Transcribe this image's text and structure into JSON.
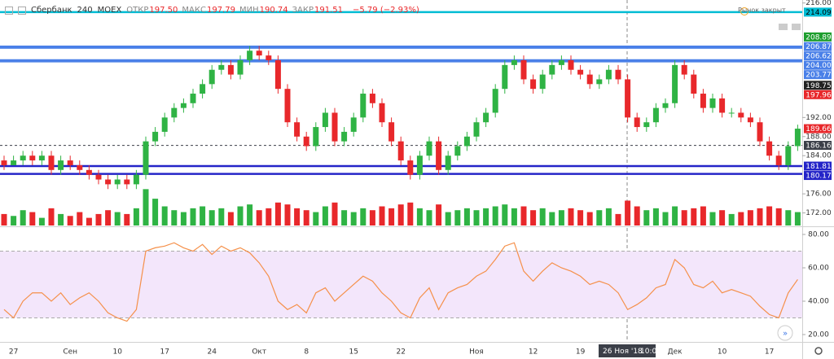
{
  "header": {
    "symbol": "Сбербанк",
    "interval": "240",
    "exchange": "MOEX",
    "ohlc": [
      {
        "label": "ОТКР",
        "value": "197.50"
      },
      {
        "label": "МАКС",
        "value": "197.79"
      },
      {
        "label": "МИН",
        "value": "190.74"
      },
      {
        "label": "ЗАКР",
        "value": "191.51"
      }
    ],
    "change": "−5.79 (−2.93%)",
    "market_status": "Рынок закрыт"
  },
  "crosshair": {
    "date": "26 Ноя '18",
    "time": "10:00"
  },
  "chart_data": [
    {
      "type": "candlestick",
      "up_color": "#2fb344",
      "down_color": "#e8282b",
      "open": [
        183,
        182,
        183,
        184,
        183,
        184,
        181,
        183,
        182,
        181,
        180,
        179,
        178,
        179,
        178,
        180,
        187,
        189,
        192,
        194,
        195,
        197,
        199,
        202,
        203,
        201,
        204,
        206,
        205,
        204,
        198,
        191,
        188,
        186,
        190,
        193,
        187,
        189,
        192,
        197,
        195,
        191,
        187,
        183,
        180,
        184,
        187,
        181,
        184,
        186,
        188,
        191,
        193,
        198,
        203,
        204,
        200,
        198,
        201,
        203,
        204,
        202,
        201,
        199,
        200,
        202,
        200,
        192,
        190,
        191,
        194,
        195,
        203,
        201,
        197,
        194,
        196,
        193,
        193,
        192,
        191,
        187,
        184,
        182,
        186
      ],
      "high": [
        184,
        184,
        185,
        185,
        185,
        185,
        184,
        184,
        183,
        182,
        181,
        180,
        180,
        180,
        181,
        188,
        190,
        193,
        195,
        196,
        198,
        200,
        203,
        204,
        204,
        205,
        207,
        207,
        206,
        205,
        199,
        192,
        189,
        191,
        194,
        194,
        190,
        193,
        198,
        198,
        196,
        192,
        188,
        184,
        185,
        188,
        188,
        185,
        187,
        189,
        192,
        194,
        199,
        204,
        205,
        205,
        201,
        202,
        204,
        205,
        205,
        203,
        202,
        201,
        203,
        203,
        201,
        193,
        192,
        195,
        196,
        204,
        204,
        202,
        198,
        197,
        197,
        194,
        194,
        193,
        192,
        188,
        185,
        187,
        190.5
      ],
      "low": [
        181,
        182,
        182,
        182,
        182,
        180,
        180,
        181,
        180,
        179,
        178,
        177,
        177,
        177,
        177,
        179,
        186,
        188,
        191,
        193,
        194,
        196,
        198,
        201,
        200,
        200,
        203,
        204,
        203,
        197,
        190,
        187,
        185,
        185,
        189,
        186,
        186,
        188,
        191,
        194,
        190,
        186,
        182,
        179,
        179,
        183,
        180,
        180,
        183,
        185,
        187,
        190,
        192,
        197,
        202,
        199,
        197,
        197,
        200,
        202,
        201,
        200,
        198,
        198,
        199,
        199,
        191,
        189,
        189,
        190,
        193,
        194,
        200,
        196,
        193,
        193,
        192,
        192,
        191,
        190,
        186,
        183,
        181,
        181,
        185
      ],
      "close": [
        182,
        183,
        184,
        183,
        184,
        181,
        183,
        182,
        181,
        180,
        179,
        178,
        179,
        178,
        180,
        187,
        189,
        192,
        194,
        195,
        197,
        199,
        202,
        203,
        201,
        204,
        206,
        205,
        204,
        198,
        191,
        188,
        186,
        190,
        193,
        187,
        189,
        192,
        197,
        195,
        191,
        187,
        183,
        180,
        184,
        187,
        181,
        184,
        186,
        188,
        191,
        193,
        198,
        203,
        204,
        200,
        198,
        201,
        203,
        204,
        202,
        201,
        199,
        200,
        202,
        200,
        192,
        190,
        191,
        194,
        195,
        203,
        201,
        197,
        194,
        196,
        193,
        193,
        192,
        191,
        187,
        184,
        182,
        186,
        189.66
      ],
      "volume": [
        30,
        25,
        40,
        35,
        20,
        45,
        30,
        25,
        35,
        20,
        30,
        40,
        35,
        30,
        45,
        95,
        70,
        50,
        40,
        35,
        45,
        50,
        40,
        45,
        35,
        50,
        55,
        40,
        45,
        60,
        55,
        45,
        40,
        35,
        50,
        60,
        40,
        35,
        45,
        40,
        50,
        45,
        55,
        60,
        45,
        40,
        55,
        35,
        40,
        45,
        40,
        45,
        50,
        55,
        45,
        50,
        40,
        45,
        35,
        40,
        45,
        40,
        35,
        40,
        45,
        30,
        65,
        50,
        40,
        45,
        35,
        50,
        40,
        45,
        50,
        35,
        40,
        30,
        35,
        40,
        45,
        50,
        45,
        40,
        35
      ],
      "vlim": [
        0,
        100
      ],
      "ylim": [
        171.24,
        216.63
      ],
      "yticks": [
        {
          "value": 216,
          "label": "216.00"
        },
        {
          "value": 192,
          "label": "192.00"
        },
        {
          "value": 188,
          "label": "188.00"
        },
        {
          "value": 184,
          "label": "184.00"
        },
        {
          "value": 176,
          "label": "176.00"
        },
        {
          "value": 172,
          "label": "172.00"
        }
      ],
      "xticks": [
        {
          "value": 1,
          "label": "27"
        },
        {
          "value": 7,
          "label": "Сен"
        },
        {
          "value": 12,
          "label": "10"
        },
        {
          "value": 17,
          "label": "17"
        },
        {
          "value": 22,
          "label": "24"
        },
        {
          "value": 27,
          "label": "Окт"
        },
        {
          "value": 32,
          "label": "8"
        },
        {
          "value": 37,
          "label": "15"
        },
        {
          "value": 42,
          "label": "22"
        },
        {
          "value": 50,
          "label": "Ноя"
        },
        {
          "value": 56,
          "label": "12"
        },
        {
          "value": 61,
          "label": "19"
        },
        {
          "value": 71,
          "label": "Дек"
        },
        {
          "value": 76,
          "label": "10"
        },
        {
          "value": 81,
          "label": "17"
        }
      ],
      "levels": [
        {
          "value": 214.09,
          "label": "214.09",
          "color": "#00bcd4",
          "text_color": "#000000",
          "line": true
        },
        {
          "value": 208.89,
          "label": "208.89",
          "color": "#1e9e2e",
          "line": false
        },
        {
          "value": 206.87,
          "label": "206.87",
          "color": "#4a80e8",
          "line": true
        },
        {
          "value": 206.62,
          "label": "206.62",
          "color": "#4a80e8",
          "line": true
        },
        {
          "value": 204.0,
          "label": "204.00",
          "color": "#4a80e8",
          "line": true
        },
        {
          "value": 203.77,
          "label": "203.77",
          "color": "#4a80e8",
          "line": true
        },
        {
          "value": 198.75,
          "label": "198.75",
          "color": "#222222",
          "line": false
        },
        {
          "value": 197.96,
          "label": "197.96",
          "color": "#e8282b",
          "line": false
        },
        {
          "value": 189.66,
          "label": "189.66",
          "color": "#e8282b",
          "line": false
        },
        {
          "value": 186.16,
          "label": "186.16",
          "color": "#3b3f48",
          "line": true,
          "dashed": true
        },
        {
          "value": 181.81,
          "label": "181.81",
          "color": "#2424c8",
          "line": true
        },
        {
          "value": 180.17,
          "label": "180.17",
          "color": "#2424c8",
          "line": true
        }
      ]
    },
    {
      "type": "line",
      "color": "#f5904a",
      "band": [
        30,
        70
      ],
      "band_color": "#f3e6fb",
      "values": [
        35,
        30,
        40,
        45,
        45,
        40,
        45,
        38,
        42,
        45,
        40,
        33,
        30,
        28,
        35,
        70,
        72,
        73,
        75,
        72,
        70,
        74,
        68,
        73,
        70,
        72,
        69,
        63,
        55,
        40,
        35,
        38,
        33,
        45,
        48,
        40,
        45,
        50,
        55,
        52,
        45,
        40,
        33,
        30,
        42,
        48,
        35,
        45,
        48,
        50,
        55,
        58,
        65,
        73,
        75,
        58,
        52,
        58,
        63,
        60,
        58,
        55,
        50,
        52,
        50,
        45,
        35,
        38,
        42,
        48,
        50,
        65,
        60,
        50,
        48,
        52,
        45,
        47,
        45,
        43,
        37,
        32,
        30,
        45,
        53
      ],
      "ylim": [
        15.6,
        83.9
      ],
      "yticks": [
        {
          "value": 80,
          "label": "80.00"
        },
        {
          "value": 60,
          "label": "60.00"
        },
        {
          "value": 40,
          "label": "40.00"
        },
        {
          "value": 20,
          "label": "20.00"
        }
      ]
    }
  ]
}
